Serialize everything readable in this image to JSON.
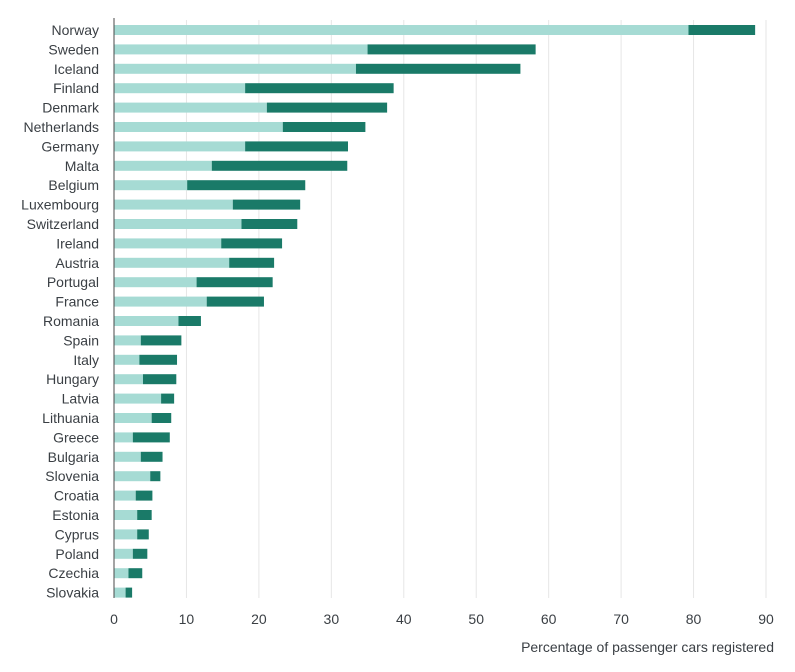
{
  "chart_data": {
    "type": "bar",
    "orientation": "horizontal",
    "stacked": true,
    "categories": [
      "Norway",
      "Sweden",
      "Iceland",
      "Finland",
      "Denmark",
      "Netherlands",
      "Germany",
      "Malta",
      "Belgium",
      "Luxembourg",
      "Switzerland",
      "Ireland",
      "Austria",
      "Portugal",
      "France",
      "Romania",
      "Spain",
      "Italy",
      "Hungary",
      "Latvia",
      "Lithuania",
      "Greece",
      "Bulgaria",
      "Slovenia",
      "Croatia",
      "Estonia",
      "Cyprus",
      "Poland",
      "Czechia",
      "Slovakia"
    ],
    "series": [
      {
        "color": "#a6dbd4",
        "values": [
          79.3,
          35.0,
          33.4,
          18.1,
          21.1,
          23.3,
          18.1,
          13.5,
          10.1,
          16.4,
          17.6,
          14.8,
          15.9,
          11.4,
          12.8,
          8.9,
          3.7,
          3.5,
          4.0,
          6.5,
          5.2,
          2.6,
          3.7,
          5.0,
          3.0,
          3.2,
          3.2,
          2.6,
          2.0,
          1.6
        ],
        "ends": [
          88.5,
          58.2,
          56.1,
          38.6,
          37.7,
          34.7,
          32.3,
          32.2,
          26.4,
          25.7,
          25.3,
          23.2,
          22.1,
          21.9,
          20.7,
          12.0,
          9.3,
          8.7,
          8.6,
          8.3,
          7.9,
          7.7,
          6.7,
          6.4,
          5.3,
          5.2,
          4.8,
          4.6,
          3.9,
          2.5
        ]
      },
      {
        "color": "#1a7a68",
        "values": [
          9.2,
          23.2,
          22.7,
          20.5,
          16.6,
          11.4,
          14.2,
          18.7,
          16.3,
          9.3,
          7.7,
          8.4,
          6.2,
          10.5,
          7.9,
          3.1,
          5.6,
          5.2,
          4.6,
          1.8,
          2.7,
          5.1,
          3.0,
          1.4,
          2.3,
          2.0,
          1.6,
          2.0,
          1.9,
          0.9
        ]
      }
    ],
    "xlabel": "Percentage of passenger cars registered",
    "xlim": [
      0,
      90
    ],
    "xticks": [
      "0",
      "10",
      "20",
      "30",
      "40",
      "50",
      "60",
      "70",
      "80",
      "90"
    ],
    "grid": "vertical",
    "legend": "none"
  }
}
